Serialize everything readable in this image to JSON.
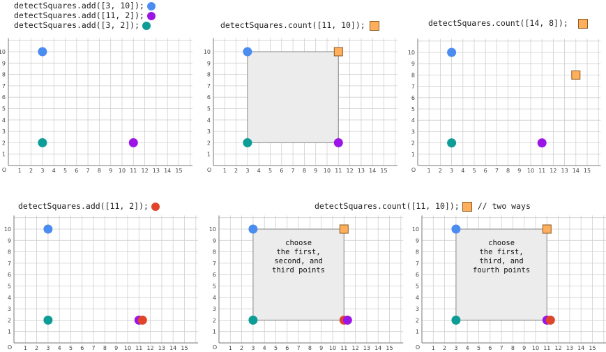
{
  "colors": {
    "blue": "#4a8cf0",
    "purple": "#9b16e6",
    "teal": "#0e9c96",
    "red": "#e0452c",
    "orange": "#ffae5c",
    "grid": "#cfcfcf",
    "axis": "#777777",
    "fill": "#ececec"
  },
  "captions": {
    "c1": "detectSquares.add([3, 10]);",
    "c2": "detectSquares.add([11, 2]);",
    "c3": "detectSquares.add([3, 2]);",
    "c4": "detectSquares.count([11, 10]);",
    "c5": "detectSquares.count([14, 8]);",
    "c6": "detectSquares.add([11, 2]);",
    "c7": "detectSquares.count([11, 10]);",
    "c7b": "// two ways"
  },
  "axis": {
    "origin": "O",
    "x_ticks": [
      1,
      2,
      3,
      4,
      5,
      6,
      7,
      8,
      9,
      10,
      11,
      12,
      13,
      14,
      15
    ],
    "y_ticks": [
      1,
      2,
      3,
      4,
      5,
      6,
      7,
      8,
      9,
      10
    ]
  },
  "notes": {
    "n5": [
      "choose",
      "the first,",
      "second, and",
      "third points"
    ],
    "n6": [
      "choose",
      "the first,",
      "third, and",
      "fourth points"
    ]
  },
  "chart_data": [
    {
      "type": "scatter",
      "points": [
        {
          "x": 3,
          "y": 10,
          "color": "blue"
        },
        {
          "x": 11,
          "y": 2,
          "color": "purple"
        },
        {
          "x": 3,
          "y": 2,
          "color": "teal"
        }
      ]
    },
    {
      "type": "scatter",
      "points": [
        {
          "x": 3,
          "y": 10,
          "color": "blue"
        },
        {
          "x": 11,
          "y": 2,
          "color": "purple"
        },
        {
          "x": 3,
          "y": 2,
          "color": "teal"
        }
      ],
      "query": {
        "x": 11,
        "y": 10
      },
      "square": [
        3,
        2,
        11,
        10
      ]
    },
    {
      "type": "scatter",
      "points": [
        {
          "x": 3,
          "y": 10,
          "color": "blue"
        },
        {
          "x": 11,
          "y": 2,
          "color": "purple"
        },
        {
          "x": 3,
          "y": 2,
          "color": "teal"
        }
      ],
      "query": {
        "x": 14,
        "y": 8
      }
    },
    {
      "type": "scatter",
      "points": [
        {
          "x": 3,
          "y": 10,
          "color": "blue"
        },
        {
          "x": 11,
          "y": 2,
          "color": "purple"
        },
        {
          "x": 3,
          "y": 2,
          "color": "teal"
        },
        {
          "x": 11,
          "y": 2,
          "color": "red"
        }
      ]
    },
    {
      "type": "scatter",
      "points": [
        {
          "x": 3,
          "y": 10,
          "color": "blue"
        },
        {
          "x": 11,
          "y": 2,
          "color": "red"
        },
        {
          "x": 11,
          "y": 2,
          "color": "purple"
        },
        {
          "x": 3,
          "y": 2,
          "color": "teal"
        }
      ],
      "query": {
        "x": 11,
        "y": 10
      },
      "square": [
        3,
        2,
        11,
        10
      ]
    },
    {
      "type": "scatter",
      "points": [
        {
          "x": 3,
          "y": 10,
          "color": "blue"
        },
        {
          "x": 11,
          "y": 2,
          "color": "purple"
        },
        {
          "x": 11,
          "y": 2,
          "color": "red"
        },
        {
          "x": 3,
          "y": 2,
          "color": "teal"
        }
      ],
      "query": {
        "x": 11,
        "y": 10
      },
      "square": [
        3,
        2,
        11,
        10
      ]
    }
  ]
}
